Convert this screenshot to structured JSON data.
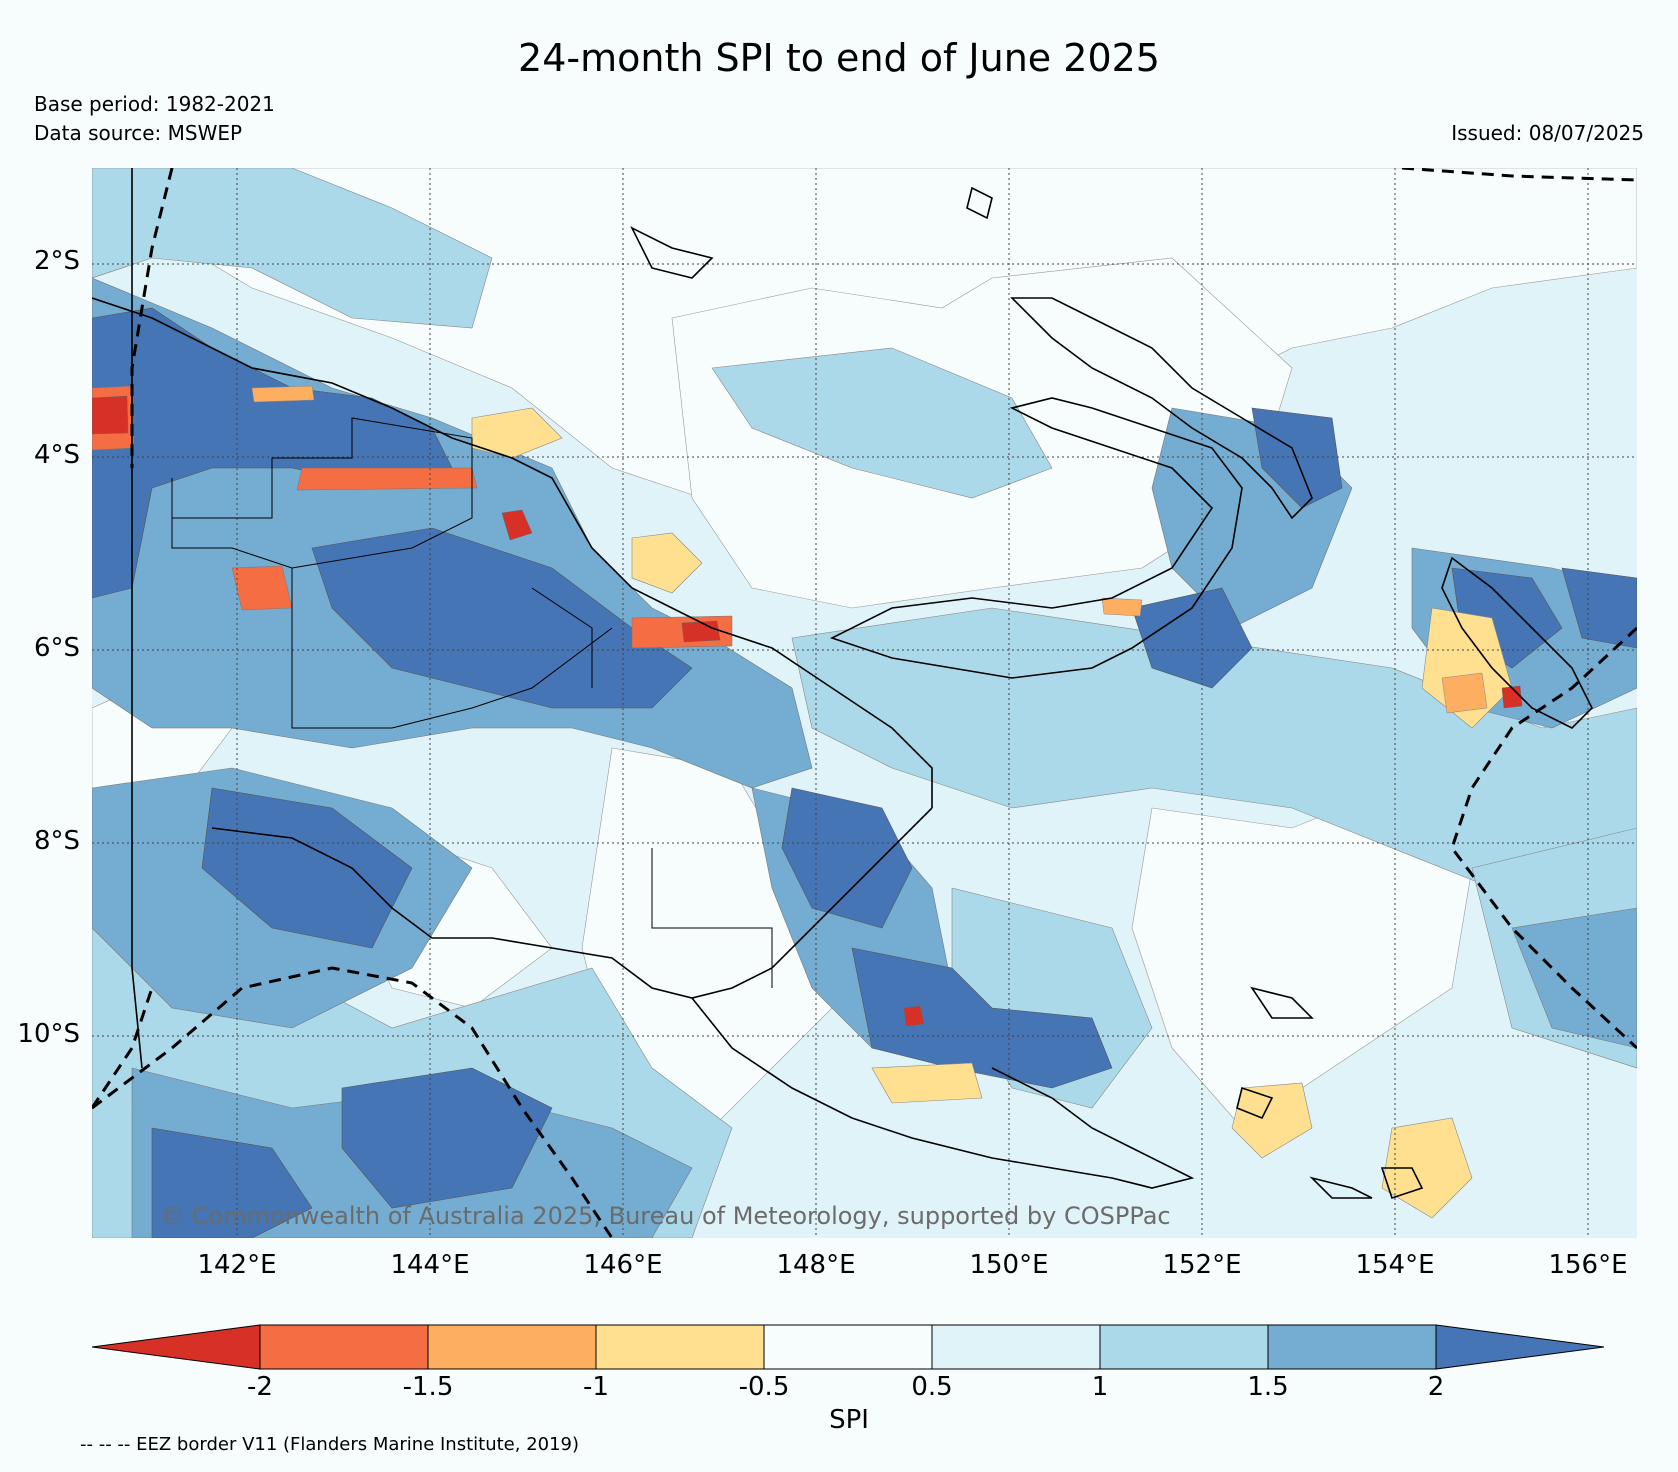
{
  "title": "24-month SPI to end of June 2025",
  "base_period": "Base period: 1982-2021",
  "data_source": "Data source: MSWEP",
  "issued": "Issued: 08/07/2025",
  "copyright": "© Commonwealth of Australia 2025, Bureau of Meteorology, supported by COSPPac",
  "eez_note": "-- -- -- EEZ border V11 (Flanders Marine Institute, 2019)",
  "map": {
    "lon_range": [
      140.5,
      156.5
    ],
    "lat_range": [
      -12.1,
      -1.0
    ],
    "lat_ticks": [
      "2°S",
      "4°S",
      "6°S",
      "8°S",
      "10°S"
    ],
    "lon_ticks": [
      "142°E",
      "144°E",
      "146°E",
      "148°E",
      "150°E",
      "152°E",
      "154°E",
      "156°E"
    ]
  },
  "colorbar": {
    "label": "SPI",
    "ticks": [
      "-2",
      "-1.5",
      "-1",
      "-0.5",
      "0.5",
      "1",
      "1.5",
      "2"
    ],
    "colors": {
      "below_-2": "#d73027",
      "-2_to_-1.5": "#f46d43",
      "-1.5_to_-1": "#fdae61",
      "-1_to_-0.5": "#fee090",
      "-0.5_to_0.5": "#f7fcfd",
      "0.5_to_1": "#e0f3f8",
      "1_to_1.5": "#abd9e9",
      "1.5_to_2": "#74add1",
      "above_2": "#4575b4"
    }
  }
}
